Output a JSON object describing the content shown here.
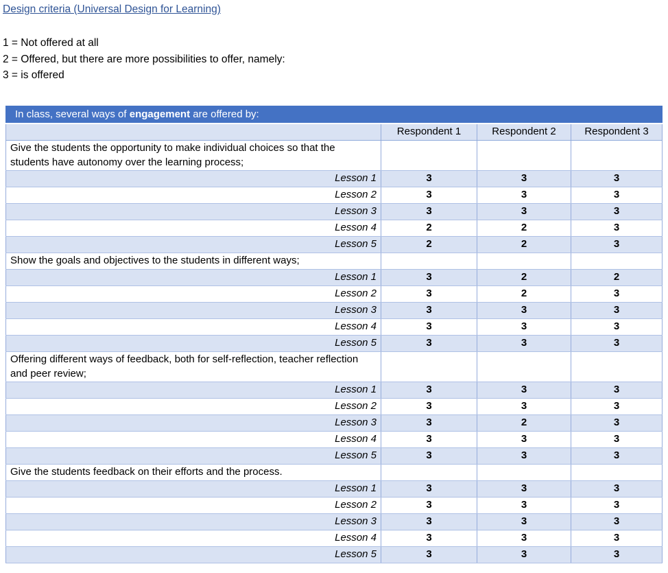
{
  "page": {
    "title_link": "Design criteria (Universal Design for Learning)",
    "legend": [
      "1 = Not offered at all",
      "2 = Offered, but there are more possibilities to offer, namely:",
      "3 = is offered"
    ]
  },
  "table": {
    "header": {
      "prefix": "In class, several ways of ",
      "bold": "engagement",
      "suffix": " are offered by:"
    },
    "columns": [
      "Respondent 1",
      "Respondent 2",
      "Respondent 3"
    ],
    "sections": [
      {
        "criterion": "Give the students the opportunity to make individual choices so that the students have autonomy over the learning process;",
        "rows": [
          {
            "label": "Lesson 1",
            "values": [
              "3",
              "3",
              "3"
            ]
          },
          {
            "label": "Lesson 2",
            "values": [
              "3",
              "3",
              "3"
            ]
          },
          {
            "label": "Lesson 3",
            "values": [
              "3",
              "3",
              "3"
            ]
          },
          {
            "label": "Lesson 4",
            "values": [
              "2",
              "2",
              "3"
            ]
          },
          {
            "label": "Lesson 5",
            "values": [
              "2",
              "2",
              "3"
            ]
          }
        ]
      },
      {
        "criterion": "Show the goals and objectives to the students in different ways;",
        "rows": [
          {
            "label": "Lesson 1",
            "values": [
              "3",
              "2",
              "2"
            ]
          },
          {
            "label": "Lesson 2",
            "values": [
              "3",
              "2",
              "3"
            ]
          },
          {
            "label": "Lesson 3",
            "values": [
              "3",
              "3",
              "3"
            ]
          },
          {
            "label": "Lesson 4",
            "values": [
              "3",
              "3",
              "3"
            ]
          },
          {
            "label": "Lesson 5",
            "values": [
              "3",
              "3",
              "3"
            ]
          }
        ]
      },
      {
        "criterion": "Offering different ways of feedback, both for self-reflection, teacher reflection and peer review;",
        "rows": [
          {
            "label": "Lesson 1",
            "values": [
              "3",
              "3",
              "3"
            ]
          },
          {
            "label": "Lesson 2",
            "values": [
              "3",
              "3",
              "3"
            ]
          },
          {
            "label": "Lesson 3",
            "values": [
              "3",
              "2",
              "3"
            ]
          },
          {
            "label": "Lesson 4",
            "values": [
              "3",
              "3",
              "3"
            ]
          },
          {
            "label": "Lesson 5",
            "values": [
              "3",
              "3",
              "3"
            ]
          }
        ]
      },
      {
        "criterion": "Give the students feedback on their efforts and the process.",
        "rows": [
          {
            "label": "Lesson 1",
            "values": [
              "3",
              "3",
              "3"
            ]
          },
          {
            "label": "Lesson 2",
            "values": [
              "3",
              "3",
              "3"
            ]
          },
          {
            "label": "Lesson 3",
            "values": [
              "3",
              "3",
              "3"
            ]
          },
          {
            "label": "Lesson 4",
            "values": [
              "3",
              "3",
              "3"
            ]
          },
          {
            "label": "Lesson 5",
            "values": [
              "3",
              "3",
              "3"
            ]
          }
        ]
      }
    ]
  },
  "colors": {
    "header_bg": "#4472C4",
    "header_text": "#FFFFFF",
    "band_bg": "#D9E2F3",
    "border": "#8EAADB",
    "link": "#2F5496"
  }
}
